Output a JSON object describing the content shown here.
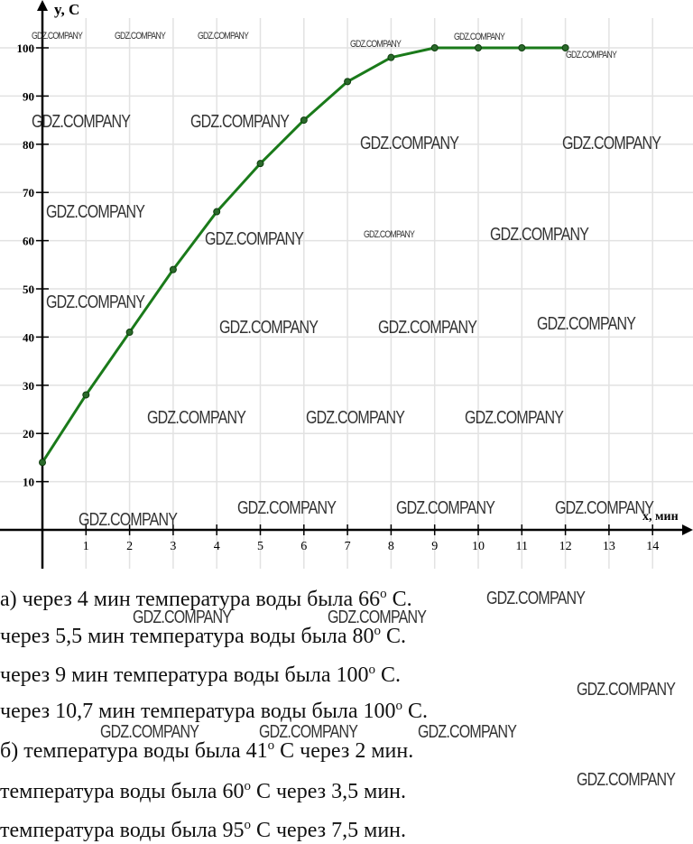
{
  "chart_data": {
    "type": "line",
    "xlabel": "x, мин",
    "ylabel": "y, С",
    "xlim": [
      0,
      14
    ],
    "ylim": [
      0,
      100
    ],
    "xticks": [
      1,
      2,
      3,
      4,
      5,
      6,
      7,
      8,
      9,
      10,
      11,
      12,
      13,
      14
    ],
    "yticks": [
      10,
      20,
      30,
      40,
      50,
      60,
      70,
      80,
      90,
      100
    ],
    "grid": true,
    "line_color": "#1a7a1a",
    "x": [
      0,
      1,
      2,
      3,
      4,
      5,
      6,
      7,
      8,
      9,
      10,
      11,
      12
    ],
    "y": [
      14,
      28,
      41,
      54,
      66,
      76,
      85,
      93,
      98,
      100,
      100,
      100,
      100
    ]
  },
  "answers": [
    {
      "pre": "а) через 4 мин температура воды была 66",
      "sup": "o",
      "post": " С."
    },
    {
      "pre": "через 5,5 мин температура воды была 80",
      "sup": "o",
      "post": " С."
    },
    {
      "pre": "через 9 мин температура воды была 100",
      "sup": "o",
      "post": " С."
    },
    {
      "pre": "через 10,7 мин температура воды была 100",
      "sup": "o",
      "post": " С."
    },
    {
      "pre": "б) температура воды была 41",
      "sup": "o",
      "post": " С через 2 мин."
    },
    {
      "pre": "температура воды была 60",
      "sup": "o",
      "post": " С через 3,5 мин."
    },
    {
      "pre": "температура воды была 95",
      "sup": "o",
      "post": " С через 7,5 мин."
    }
  ],
  "watermark": "GDZ.COMPANY"
}
